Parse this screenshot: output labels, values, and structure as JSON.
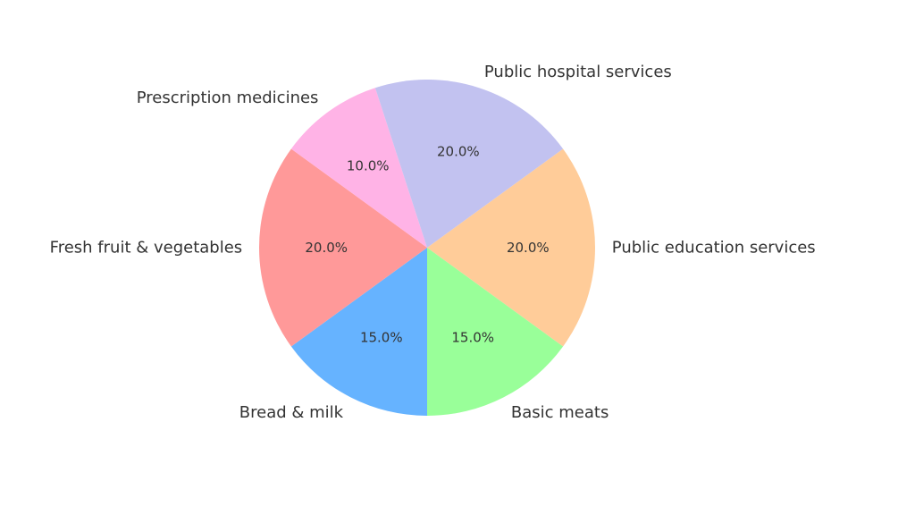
{
  "chart_data": {
    "type": "pie",
    "title": "",
    "legend": "none",
    "start_angle_deg": -36,
    "direction": "clockwise",
    "slices": [
      {
        "label": "Public education services",
        "value": 20.0,
        "pct_label": "20.0%",
        "color": "#ffcc99"
      },
      {
        "label": "Basic meats",
        "value": 15.0,
        "pct_label": "15.0%",
        "color": "#99ff99"
      },
      {
        "label": "Bread & milk",
        "value": 15.0,
        "pct_label": "15.0%",
        "color": "#66b3ff"
      },
      {
        "label": "Fresh fruit & vegetables",
        "value": 20.0,
        "pct_label": "20.0%",
        "color": "#ff9999"
      },
      {
        "label": "Prescription medicines",
        "value": 10.0,
        "pct_label": "10.0%",
        "color": "#ffb3e6"
      },
      {
        "label": "Public hospital services",
        "value": 20.0,
        "pct_label": "20.0%",
        "color": "#c2c2f0"
      }
    ]
  }
}
